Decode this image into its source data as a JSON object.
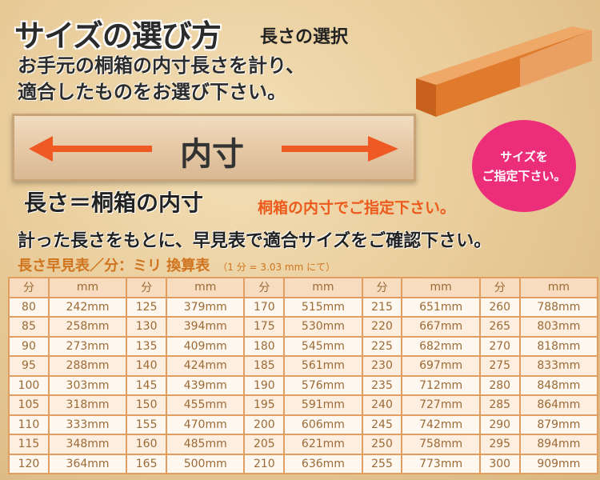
{
  "title": "サイズの選び方",
  "subtitle": "長さの選択",
  "lead": [
    "お手元の桐箱の内寸長さを計り、",
    "適合したものをお選び下さい。"
  ],
  "board_label": "内寸",
  "badge": [
    "サイズを",
    "ご指定下さい。"
  ],
  "heading": "長さ＝桐箱の内寸",
  "heading_note": "桐箱の内寸でご指定下さい。",
  "instruction": "計った長さをもとに、早見表で適合サイズをご確認下さい。",
  "table_caption": "長さ早見表／分：ミリ 換算表",
  "table_note": "（1 分 = 3.03 mm にて）",
  "colors": {
    "arrow": "#ef5a24",
    "badge": "#ec2d7a",
    "table_border": "#e29e60",
    "box": "#e07a2c"
  },
  "table": {
    "headers": [
      "分",
      "mm",
      "分",
      "mm",
      "分",
      "mm",
      "分",
      "mm",
      "分",
      "mm"
    ],
    "rows": [
      [
        "80",
        "242mm",
        "125",
        "379mm",
        "170",
        "515mm",
        "215",
        "651mm",
        "260",
        "788mm"
      ],
      [
        "85",
        "258mm",
        "130",
        "394mm",
        "175",
        "530mm",
        "220",
        "667mm",
        "265",
        "803mm"
      ],
      [
        "90",
        "273mm",
        "135",
        "409mm",
        "180",
        "545mm",
        "225",
        "682mm",
        "270",
        "818mm"
      ],
      [
        "95",
        "288mm",
        "140",
        "424mm",
        "185",
        "561mm",
        "230",
        "697mm",
        "275",
        "833mm"
      ],
      [
        "100",
        "303mm",
        "145",
        "439mm",
        "190",
        "576mm",
        "235",
        "712mm",
        "280",
        "848mm"
      ],
      [
        "105",
        "318mm",
        "150",
        "455mm",
        "195",
        "591mm",
        "240",
        "727mm",
        "285",
        "864mm"
      ],
      [
        "110",
        "333mm",
        "155",
        "470mm",
        "200",
        "606mm",
        "245",
        "742mm",
        "290",
        "879mm"
      ],
      [
        "115",
        "348mm",
        "160",
        "485mm",
        "205",
        "621mm",
        "250",
        "758mm",
        "295",
        "894mm"
      ],
      [
        "120",
        "364mm",
        "165",
        "500mm",
        "210",
        "636mm",
        "255",
        "773mm",
        "300",
        "909mm"
      ]
    ]
  }
}
